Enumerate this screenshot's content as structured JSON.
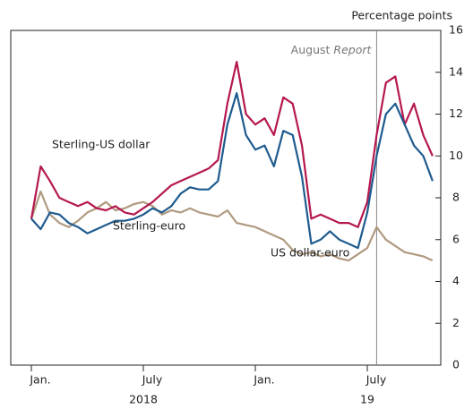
{
  "chart_data": {
    "type": "line",
    "y_axis_label": "Percentage points",
    "categories": [
      "Jan.",
      null,
      null,
      null,
      null,
      null,
      null,
      null,
      null,
      null,
      null,
      null,
      "July",
      null,
      null,
      null,
      null,
      null,
      null,
      null,
      null,
      null,
      null,
      null,
      "Jan.",
      null,
      null,
      null,
      null,
      null,
      null,
      null,
      null,
      null,
      null,
      null,
      "July",
      null,
      null,
      null,
      null,
      null,
      null,
      null
    ],
    "year_labels": [
      {
        "index": 12,
        "label": "2018"
      },
      {
        "index": 36,
        "label": "19"
      }
    ],
    "series": [
      {
        "name": "Sterling-US dollar",
        "color": "#b5174f",
        "values": [
          7.0,
          9.5,
          8.8,
          8.0,
          7.8,
          7.6,
          7.8,
          7.5,
          7.4,
          7.6,
          7.3,
          7.2,
          7.5,
          7.8,
          8.2,
          8.6,
          8.8,
          9.0,
          9.2,
          9.4,
          9.8,
          12.5,
          14.5,
          12.0,
          11.5,
          11.8,
          11.0,
          12.8,
          12.5,
          10.5,
          7.0,
          7.2,
          7.0,
          6.8,
          6.8,
          6.6,
          7.8,
          11.0,
          13.5,
          13.8,
          11.5,
          12.5,
          11.0,
          10.0
        ]
      },
      {
        "name": "Sterling-euro",
        "color": "#1f5b8e",
        "values": [
          7.0,
          6.5,
          7.3,
          7.2,
          6.8,
          6.6,
          6.3,
          6.5,
          6.7,
          6.9,
          6.9,
          7.0,
          7.2,
          7.5,
          7.3,
          7.6,
          8.2,
          8.5,
          8.4,
          8.4,
          8.8,
          11.5,
          13.0,
          11.0,
          10.3,
          10.5,
          9.5,
          11.2,
          11.0,
          9.0,
          5.8,
          6.0,
          6.4,
          6.0,
          5.8,
          5.6,
          7.3,
          10.0,
          12.0,
          12.5,
          11.5,
          10.5,
          10.0,
          8.8
        ]
      },
      {
        "name": "US dollar-euro",
        "color": "#b09a80",
        "values": [
          7.0,
          8.3,
          7.2,
          6.8,
          6.6,
          6.9,
          7.3,
          7.5,
          7.8,
          7.4,
          7.5,
          7.7,
          7.8,
          7.6,
          7.2,
          7.4,
          7.3,
          7.5,
          7.3,
          7.2,
          7.1,
          7.4,
          6.8,
          6.7,
          6.6,
          6.4,
          6.2,
          6.0,
          5.5,
          5.3,
          5.4,
          5.2,
          5.3,
          5.1,
          5.0,
          5.3,
          5.6,
          6.6,
          6.0,
          5.7,
          5.4,
          5.3,
          5.2,
          5.0
        ]
      }
    ],
    "event": {
      "index": 37,
      "label": "August",
      "label_italic": "Report"
    },
    "ylim": [
      0,
      16
    ],
    "yticks": [
      0,
      2,
      4,
      6,
      8,
      10,
      12,
      14,
      16
    ]
  }
}
